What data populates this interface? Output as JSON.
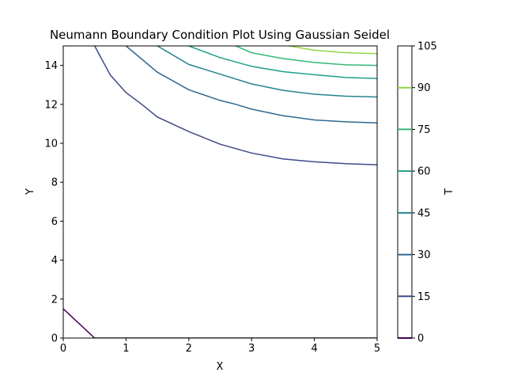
{
  "chart_data": {
    "type": "contour",
    "title": "Neumann Boundary Condition Plot Using Gaussian Seidel",
    "xlabel": "X",
    "ylabel": "Y",
    "xlim": [
      0,
      5
    ],
    "ylim": [
      0,
      15
    ],
    "xticks": [
      "0",
      "1",
      "2",
      "3",
      "4",
      "5"
    ],
    "yticks": [
      "0",
      "2",
      "4",
      "6",
      "8",
      "10",
      "12",
      "14"
    ],
    "colorbar": {
      "label": "T",
      "range": [
        0,
        105
      ],
      "ticks": [
        "0",
        "15",
        "30",
        "45",
        "60",
        "75",
        "90",
        "105"
      ]
    },
    "levels": [
      {
        "level": 0,
        "color": "#440154",
        "points": [
          [
            0,
            1.5
          ],
          [
            0.5,
            0
          ],
          [
            5,
            0
          ]
        ]
      },
      {
        "level": 15,
        "color": "#3e4a89",
        "points": [
          [
            0.5,
            15
          ],
          [
            0.75,
            13.5
          ],
          [
            1,
            12.6
          ],
          [
            1.25,
            12.0
          ],
          [
            1.5,
            11.35
          ],
          [
            2,
            10.6
          ],
          [
            2.5,
            9.95
          ],
          [
            3,
            9.5
          ],
          [
            3.5,
            9.2
          ],
          [
            4,
            9.05
          ],
          [
            4.5,
            8.95
          ],
          [
            5,
            8.9
          ]
        ]
      },
      {
        "level": 30,
        "color": "#31688e",
        "points": [
          [
            1,
            15
          ],
          [
            1.5,
            13.65
          ],
          [
            2,
            12.75
          ],
          [
            2.5,
            12.2
          ],
          [
            2.75,
            12.0
          ],
          [
            3,
            11.75
          ],
          [
            3.5,
            11.42
          ],
          [
            4,
            11.2
          ],
          [
            4.5,
            11.1
          ],
          [
            5,
            11.05
          ]
        ]
      },
      {
        "level": 45,
        "color": "#26828e",
        "points": [
          [
            1.5,
            15
          ],
          [
            2,
            14.05
          ],
          [
            2.5,
            13.55
          ],
          [
            3,
            13.05
          ],
          [
            3.5,
            12.72
          ],
          [
            4,
            12.52
          ],
          [
            4.5,
            12.42
          ],
          [
            5,
            12.38
          ]
        ]
      },
      {
        "level": 60,
        "color": "#1f9e89",
        "points": [
          [
            2,
            15
          ],
          [
            2.5,
            14.4
          ],
          [
            3,
            13.95
          ],
          [
            3.5,
            13.68
          ],
          [
            4,
            13.52
          ],
          [
            4.5,
            13.38
          ],
          [
            5,
            13.33
          ]
        ]
      },
      {
        "level": 75,
        "color": "#35b779",
        "points": [
          [
            2.75,
            15
          ],
          [
            3,
            14.65
          ],
          [
            3.5,
            14.35
          ],
          [
            4,
            14.15
          ],
          [
            4.5,
            14.03
          ],
          [
            5,
            14.0
          ]
        ]
      },
      {
        "level": 90,
        "color": "#8fd744",
        "points": [
          [
            3.6,
            15
          ],
          [
            4,
            14.78
          ],
          [
            4.5,
            14.65
          ],
          [
            5,
            14.6
          ]
        ]
      }
    ]
  }
}
